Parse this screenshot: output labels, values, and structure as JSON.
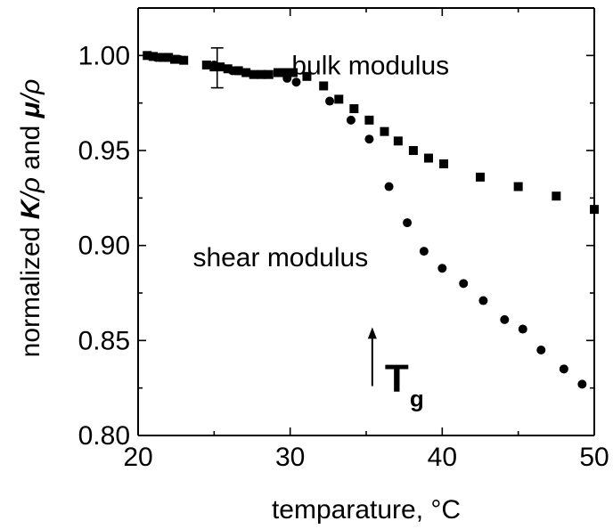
{
  "chart_data": {
    "type": "scatter",
    "title": "",
    "xlabel": "temparature, °C",
    "ylabel": {
      "prefix": "normalized ",
      "k": "K",
      "rho1": "/ρ",
      "and": " and ",
      "mu": "μ",
      "rho2": "/ρ"
    },
    "xlim": [
      20,
      50
    ],
    "ylim": [
      0.8,
      1.025
    ],
    "x_ticks": [
      20,
      30,
      40,
      50
    ],
    "x_tick_labels": [
      "20",
      "30",
      "40",
      "50"
    ],
    "y_ticks": [
      0.8,
      0.85,
      0.9,
      0.95,
      1.0
    ],
    "y_tick_labels": [
      "0.80",
      "0.85",
      "0.90",
      "0.95",
      "1.00"
    ],
    "grid": false,
    "series": [
      {
        "name": "bulk modulus",
        "marker": "square",
        "x": [
          20.6,
          21.0,
          21.6,
          22.0,
          22.4,
          23.0,
          24.5,
          25.0,
          25.4,
          25.9,
          26.6,
          27.1,
          27.6,
          28.1,
          28.6,
          29.2,
          29.7,
          30.2,
          31.1,
          32.2,
          33.2,
          34.2,
          35.2,
          36.2,
          37.1,
          38.1,
          39.1,
          40.1,
          42.5,
          45.0,
          47.5,
          50.0
        ],
        "y": [
          1.0,
          0.9995,
          0.999,
          0.999,
          0.998,
          0.9975,
          0.995,
          0.994,
          0.994,
          0.993,
          0.992,
          0.991,
          0.99,
          0.99,
          0.99,
          0.991,
          0.991,
          0.991,
          0.989,
          0.984,
          0.977,
          0.972,
          0.966,
          0.96,
          0.955,
          0.95,
          0.946,
          0.943,
          0.936,
          0.931,
          0.926,
          0.919
        ]
      },
      {
        "name": "shear modulus",
        "marker": "circle",
        "x": [
          20.7,
          21.2,
          22.0,
          22.7,
          25.0,
          26.2,
          28.3,
          29.8,
          30.4,
          32.6,
          34.0,
          35.2,
          36.5,
          37.7,
          38.8,
          40.0,
          41.4,
          42.7,
          44.1,
          45.3,
          46.5,
          48.0,
          49.2
        ],
        "y": [
          1.0,
          0.999,
          0.999,
          0.998,
          0.995,
          0.992,
          0.99,
          0.988,
          0.986,
          0.976,
          0.966,
          0.956,
          0.931,
          0.912,
          0.897,
          0.888,
          0.88,
          0.871,
          0.861,
          0.856,
          0.845,
          0.835,
          0.827
        ]
      }
    ],
    "error_bar": {
      "x": 25.2,
      "y": 0.994,
      "low": 0.983,
      "high": 1.004
    },
    "annotations": {
      "bulk": {
        "text": "bulk modulus",
        "x": 30.1,
        "y": 0.99
      },
      "shear": {
        "text": "shear modulus",
        "x": 23.6,
        "y": 0.889
      },
      "tg": {
        "main": "T",
        "sub": "g",
        "x": 35.4,
        "y_from": 0.826,
        "y_to": 0.857
      }
    }
  }
}
